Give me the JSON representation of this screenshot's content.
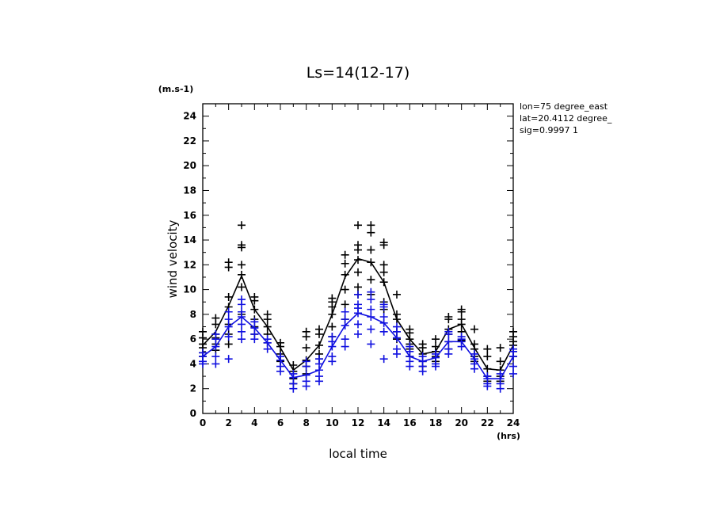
{
  "chart_data": {
    "type": "line",
    "title": "Ls=14(12-17)",
    "ylabel": "wind velocity",
    "yunit": "(m.s-1)",
    "xlabel": "local time",
    "xunit": "(hrs)",
    "xlim": [
      0,
      24
    ],
    "ylim": [
      0,
      25
    ],
    "xticks": [
      0,
      2,
      4,
      6,
      8,
      10,
      12,
      14,
      16,
      18,
      20,
      22,
      24
    ],
    "yticks": [
      0,
      2,
      4,
      6,
      8,
      10,
      12,
      14,
      16,
      18,
      20,
      22,
      24
    ],
    "info": [
      "lon=75 degree_east",
      "lat=20.4112 degree_",
      "sig=0.9997 1"
    ],
    "x": [
      0,
      1,
      2,
      3,
      4,
      5,
      6,
      7,
      8,
      9,
      10,
      11,
      12,
      13,
      14,
      15,
      16,
      17,
      18,
      19,
      20,
      21,
      22,
      23,
      24
    ],
    "series": [
      {
        "color": "#000000",
        "line": [
          5.5,
          6.6,
          8.7,
          11.1,
          8.4,
          7.0,
          5.3,
          3.5,
          4.3,
          5.5,
          8.0,
          11.0,
          12.5,
          12.2,
          10.6,
          7.6,
          6.0,
          4.8,
          5.0,
          6.8,
          7.2,
          5.3,
          3.6,
          3.5,
          5.5
        ],
        "points": [
          [
            5.3,
            5.6,
            6.1,
            6.6,
            4.9,
            4.6
          ],
          [
            6.4,
            7.2,
            7.7,
            6.1,
            5.6,
            5.1
          ],
          [
            8.6,
            9.4,
            11.8,
            12.2,
            7.2,
            5.6,
            6.4
          ],
          [
            11.2,
            12.0,
            13.4,
            13.6,
            15.2,
            10.2,
            8.0
          ],
          [
            8.4,
            9.1,
            9.4,
            7.6,
            7.0,
            6.4
          ],
          [
            7.0,
            7.6,
            8.0,
            6.4,
            5.7
          ],
          [
            5.4,
            5.7,
            4.8,
            4.2
          ],
          [
            3.4,
            3.9,
            2.8,
            2.4
          ],
          [
            4.3,
            5.3,
            6.2,
            6.6,
            3.8,
            3.2
          ],
          [
            5.5,
            6.4,
            6.8,
            4.8,
            4.4
          ],
          [
            8.0,
            8.6,
            9.0,
            9.3,
            7.0,
            6.2
          ],
          [
            11.2,
            12.1,
            12.8,
            10.0,
            8.8,
            7.6
          ],
          [
            12.4,
            13.2,
            13.6,
            15.2,
            11.4,
            10.2,
            9.6
          ],
          [
            12.2,
            13.2,
            14.6,
            15.2,
            10.8,
            9.6
          ],
          [
            10.6,
            11.4,
            12.0,
            13.6,
            13.8,
            9.0,
            8.4
          ],
          [
            7.6,
            8.0,
            9.6,
            6.6,
            6.0
          ],
          [
            6.0,
            6.5,
            6.8,
            5.6,
            5.2,
            4.6
          ],
          [
            4.8,
            5.3,
            5.6,
            4.2,
            3.8
          ],
          [
            5.0,
            5.4,
            6.0,
            4.6,
            4.2
          ],
          [
            6.8,
            7.6,
            7.8,
            6.4,
            5.8,
            5.2
          ],
          [
            7.2,
            7.6,
            8.2,
            8.4,
            6.6,
            5.9
          ],
          [
            5.2,
            5.6,
            6.8,
            4.6,
            4.2
          ],
          [
            3.6,
            4.6,
            5.2,
            3.0,
            2.6
          ],
          [
            3.5,
            4.2,
            5.3,
            3.0,
            2.6
          ],
          [
            5.5,
            5.8,
            6.2,
            6.6,
            5.0,
            4.6
          ]
        ]
      },
      {
        "color": "#1010e0",
        "line": [
          4.6,
          5.4,
          7.0,
          7.8,
          6.9,
          5.7,
          4.3,
          2.9,
          3.1,
          3.5,
          5.4,
          7.1,
          8.1,
          7.8,
          7.3,
          6.1,
          4.6,
          4.2,
          4.5,
          5.8,
          5.8,
          4.4,
          2.8,
          2.8,
          4.6
        ],
        "points": [
          [
            4.6,
            4.9,
            4.2,
            4.0
          ],
          [
            5.4,
            6.0,
            6.4,
            4.6,
            4.0
          ],
          [
            7.0,
            7.6,
            8.2,
            6.2,
            4.4
          ],
          [
            7.8,
            8.2,
            8.8,
            9.2,
            7.2,
            6.6,
            6.0
          ],
          [
            6.9,
            7.4,
            6.4,
            6.0
          ],
          [
            5.7,
            6.0,
            5.2
          ],
          [
            4.3,
            4.6,
            3.8,
            3.4
          ],
          [
            2.9,
            3.2,
            2.4,
            2.0
          ],
          [
            3.1,
            3.8,
            4.2,
            2.6,
            2.2
          ],
          [
            3.5,
            4.0,
            4.4,
            3.0,
            2.6
          ],
          [
            5.4,
            5.8,
            6.2,
            4.6,
            4.2
          ],
          [
            7.1,
            7.6,
            8.2,
            6.0,
            5.4
          ],
          [
            8.1,
            8.5,
            8.8,
            9.6,
            7.2,
            6.4
          ],
          [
            7.8,
            8.4,
            9.2,
            9.8,
            6.8,
            5.6
          ],
          [
            7.3,
            7.8,
            8.6,
            8.8,
            6.6,
            4.4
          ],
          [
            6.1,
            6.6,
            7.0,
            5.2,
            4.8
          ],
          [
            4.6,
            5.0,
            5.4,
            4.2,
            3.8
          ],
          [
            4.2,
            4.6,
            3.8,
            3.4
          ],
          [
            4.5,
            4.8,
            4.0,
            3.8
          ],
          [
            5.8,
            6.4,
            6.6,
            5.2,
            4.8
          ],
          [
            5.8,
            6.0,
            6.2,
            5.4
          ],
          [
            4.4,
            4.8,
            4.0,
            3.6
          ],
          [
            2.8,
            3.0,
            2.4,
            2.2
          ],
          [
            2.8,
            3.2,
            2.4,
            2.0
          ],
          [
            4.6,
            5.0,
            5.2,
            3.8,
            3.2
          ]
        ]
      }
    ]
  }
}
